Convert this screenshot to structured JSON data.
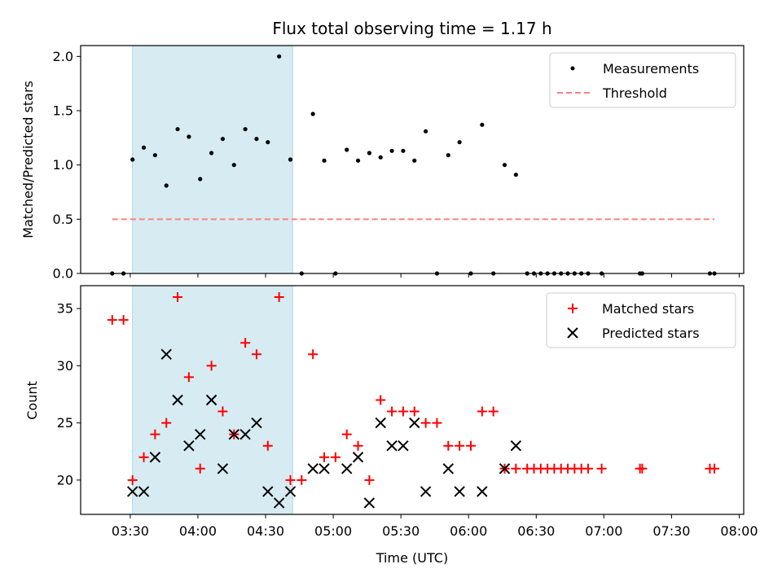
{
  "chart_data": {
    "title": "Flux total observing time = 1.17 h",
    "shared_x": {
      "label": "Time (UTC)",
      "unit": "UTC time of day",
      "xlim": [
        "03:08",
        "08:02"
      ],
      "ticks": [
        "03:30",
        "04:00",
        "04:30",
        "05:00",
        "05:30",
        "06:00",
        "06:30",
        "07:00",
        "07:30",
        "08:00"
      ]
    },
    "shaded_span": {
      "start": "03:31",
      "end": "04:42",
      "color": "#add8e6"
    },
    "panels": [
      {
        "name": "ratio",
        "type": "scatter",
        "ylabel": "Matched/Predicted stars",
        "ylim": [
          0,
          2.1
        ],
        "yticks": [
          "0.0",
          "0.5",
          "1.0",
          "1.5",
          "2.0"
        ],
        "legend": {
          "position": "top-right"
        },
        "series": [
          {
            "name": "Measurements",
            "marker": "dot",
            "color": "#000000",
            "x": [
              "03:22",
              "03:27",
              "03:31",
              "03:36",
              "03:41",
              "03:46",
              "03:51",
              "03:56",
              "04:01",
              "04:06",
              "04:11",
              "04:16",
              "04:21",
              "04:26",
              "04:31",
              "04:36",
              "04:41",
              "04:46",
              "04:51",
              "04:56",
              "05:01",
              "05:06",
              "05:11",
              "05:16",
              "05:21",
              "05:26",
              "05:31",
              "05:36",
              "05:41",
              "05:46",
              "05:51",
              "05:56",
              "06:01",
              "06:06",
              "06:11",
              "06:16",
              "06:21",
              "06:26",
              "06:29",
              "06:32",
              "06:35",
              "06:38",
              "06:41",
              "06:44",
              "06:47",
              "06:50",
              "06:53",
              "06:59",
              "07:16",
              "07:17",
              "07:47",
              "07:49"
            ],
            "y": [
              0,
              0,
              1.05,
              1.16,
              1.09,
              0.81,
              1.33,
              1.26,
              0.87,
              1.11,
              1.24,
              1.0,
              1.33,
              1.24,
              1.21,
              2.0,
              1.05,
              0,
              1.47,
              1.04,
              0,
              1.14,
              1.04,
              1.11,
              1.07,
              1.13,
              1.13,
              1.04,
              1.31,
              0,
              1.09,
              1.21,
              0,
              1.37,
              0,
              1.0,
              0.91,
              0,
              0,
              0,
              0,
              0,
              0,
              0,
              0,
              0,
              0,
              0,
              0,
              0,
              0,
              0
            ]
          },
          {
            "name": "Threshold",
            "kind": "line",
            "style": "dashed",
            "color": "#ff7f7f",
            "x": [
              "03:22",
              "07:49"
            ],
            "y": [
              0.5,
              0.5
            ]
          }
        ]
      },
      {
        "name": "counts",
        "type": "scatter",
        "ylabel": "Count",
        "ylim": [
          17,
          37
        ],
        "yticks": [
          "20",
          "25",
          "30",
          "35"
        ],
        "legend": {
          "position": "top-right"
        },
        "series": [
          {
            "name": "Matched stars",
            "marker": "plus",
            "color": "#ff0000",
            "x": [
              "03:22",
              "03:27",
              "03:31",
              "03:36",
              "03:41",
              "03:46",
              "03:51",
              "03:56",
              "04:01",
              "04:06",
              "04:11",
              "04:16",
              "04:21",
              "04:26",
              "04:31",
              "04:36",
              "04:41",
              "04:46",
              "04:51",
              "04:56",
              "05:01",
              "05:06",
              "05:11",
              "05:16",
              "05:21",
              "05:26",
              "05:31",
              "05:36",
              "05:41",
              "05:46",
              "05:51",
              "05:56",
              "06:01",
              "06:06",
              "06:11",
              "06:16",
              "06:21",
              "06:26",
              "06:29",
              "06:32",
              "06:35",
              "06:38",
              "06:41",
              "06:44",
              "06:47",
              "06:50",
              "06:53",
              "06:59",
              "07:16",
              "07:17",
              "07:47",
              "07:49"
            ],
            "y": [
              34,
              34,
              20,
              22,
              24,
              25,
              36,
              29,
              21,
              30,
              26,
              24,
              32,
              31,
              23,
              36,
              20,
              20,
              31,
              22,
              22,
              24,
              23,
              20,
              27,
              26,
              26,
              26,
              25,
              25,
              23,
              23,
              23,
              26,
              26,
              21,
              21,
              21,
              21,
              21,
              21,
              21,
              21,
              21,
              21,
              21,
              21,
              21,
              21,
              21,
              21,
              21
            ]
          },
          {
            "name": "Predicted stars",
            "marker": "x",
            "color": "#000000",
            "x": [
              "03:31",
              "03:36",
              "03:41",
              "03:46",
              "03:51",
              "03:56",
              "04:01",
              "04:06",
              "04:11",
              "04:16",
              "04:21",
              "04:26",
              "04:31",
              "04:36",
              "04:41",
              "04:51",
              "04:56",
              "05:06",
              "05:11",
              "05:16",
              "05:21",
              "05:26",
              "05:31",
              "05:36",
              "05:41",
              "05:51",
              "05:56",
              "06:06",
              "06:16",
              "06:21"
            ],
            "y": [
              19,
              19,
              22,
              31,
              27,
              23,
              24,
              27,
              21,
              24,
              24,
              25,
              19,
              18,
              19,
              21,
              21,
              21,
              22,
              18,
              25,
              23,
              23,
              25,
              19,
              21,
              19,
              19,
              21,
              23
            ]
          }
        ]
      }
    ]
  }
}
